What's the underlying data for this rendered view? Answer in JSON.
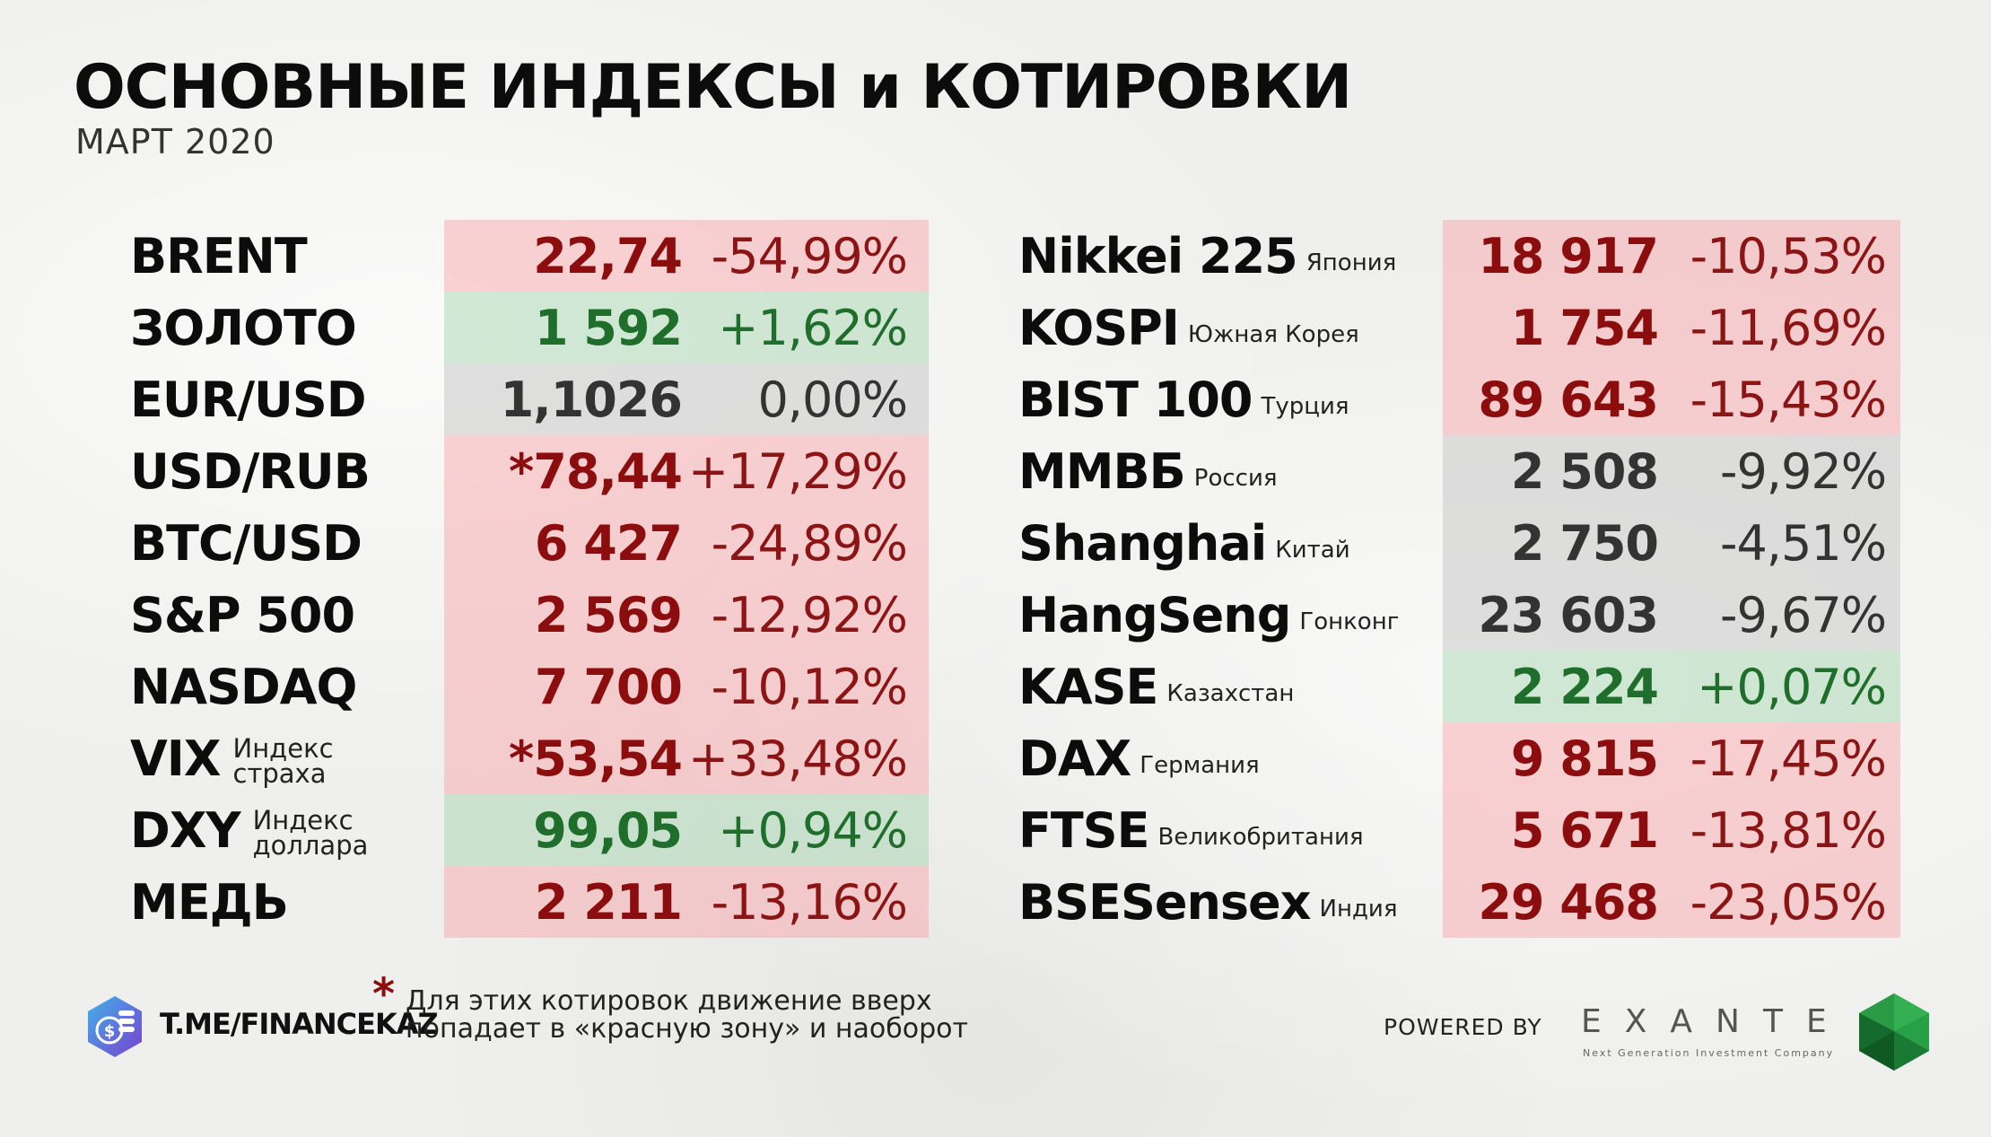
{
  "header": {
    "title": "ОСНОВНЫЕ ИНДЕКСЫ и КОТИРОВКИ",
    "subtitle": "МАРТ 2020"
  },
  "left_table": [
    {
      "name": "BRENT",
      "note": "",
      "value": "22,74",
      "change": "-54,99%",
      "zone": "red"
    },
    {
      "name": "ЗОЛОТО",
      "note": "",
      "value": "1 592",
      "change": "+1,62%",
      "zone": "green"
    },
    {
      "name": "EUR/USD",
      "note": "",
      "value": "1,1026",
      "change": "0,00%",
      "zone": "gray"
    },
    {
      "name": "USD/RUB",
      "note": "",
      "value": "*78,44",
      "change": "+17,29%",
      "zone": "red"
    },
    {
      "name": "BTC/USD",
      "note": "",
      "value": "6 427",
      "change": "-24,89%",
      "zone": "red"
    },
    {
      "name": "S&P 500",
      "note": "",
      "value": "2 569",
      "change": "-12,92%",
      "zone": "red"
    },
    {
      "name": "NASDAQ",
      "note": "",
      "value": "7 700",
      "change": "-10,12%",
      "zone": "red"
    },
    {
      "name": "VIX",
      "note": "Индекс страха",
      "value": "*53,54",
      "change": "+33,48%",
      "zone": "red"
    },
    {
      "name": "DXY",
      "note": "Индекс доллара",
      "value": "99,05",
      "change": "+0,94%",
      "zone": "green"
    },
    {
      "name": "МЕДЬ",
      "note": "",
      "value": "2 211",
      "change": "-13,16%",
      "zone": "red"
    }
  ],
  "right_table": [
    {
      "name": "Nikkei 225",
      "note": "Япония",
      "value": "18 917",
      "change": "-10,53%",
      "zone": "red"
    },
    {
      "name": "KOSPI",
      "note": "Южная Корея",
      "value": "1 754",
      "change": "-11,69%",
      "zone": "red"
    },
    {
      "name": "BIST 100",
      "note": "Турция",
      "value": "89 643",
      "change": "-15,43%",
      "zone": "red"
    },
    {
      "name": "ММВБ",
      "note": "Россия",
      "value": "2 508",
      "change": "-9,92%",
      "zone": "gray"
    },
    {
      "name": "Shanghai",
      "note": "Китай",
      "value": "2 750",
      "change": "-4,51%",
      "zone": "gray"
    },
    {
      "name": "HangSeng",
      "note": "Гонконг",
      "value": "23 603",
      "change": "-9,67%",
      "zone": "gray"
    },
    {
      "name": "KASE",
      "note": "Казахстан",
      "value": "2 224",
      "change": "+0,07%",
      "zone": "green"
    },
    {
      "name": "DAX",
      "note": "Германия",
      "value": "9 815",
      "change": "-17,45%",
      "zone": "red"
    },
    {
      "name": "FTSE",
      "note": "Великобритания",
      "value": "5 671",
      "change": "-13,81%",
      "zone": "red"
    },
    {
      "name": "BSESensex",
      "note": "Индия",
      "value": "29 468",
      "change": "-23,05%",
      "zone": "red"
    }
  ],
  "footer": {
    "link": "T.ME/FINANCEKAZ",
    "star": "*",
    "footnote": "Для этих котировок движение вверх попадает в «красную зону» и наоборот",
    "powered_by": "POWERED BY",
    "brand": "EXANTE",
    "brand_tagline": "Next Generation Investment Company"
  },
  "colors": {
    "red_zone": "#f6c3c5",
    "green_zone": "#c9e2cc",
    "gray_zone": "#d9d9d9",
    "red_text": "#8b0d0d",
    "green_text": "#1f6e2b"
  }
}
